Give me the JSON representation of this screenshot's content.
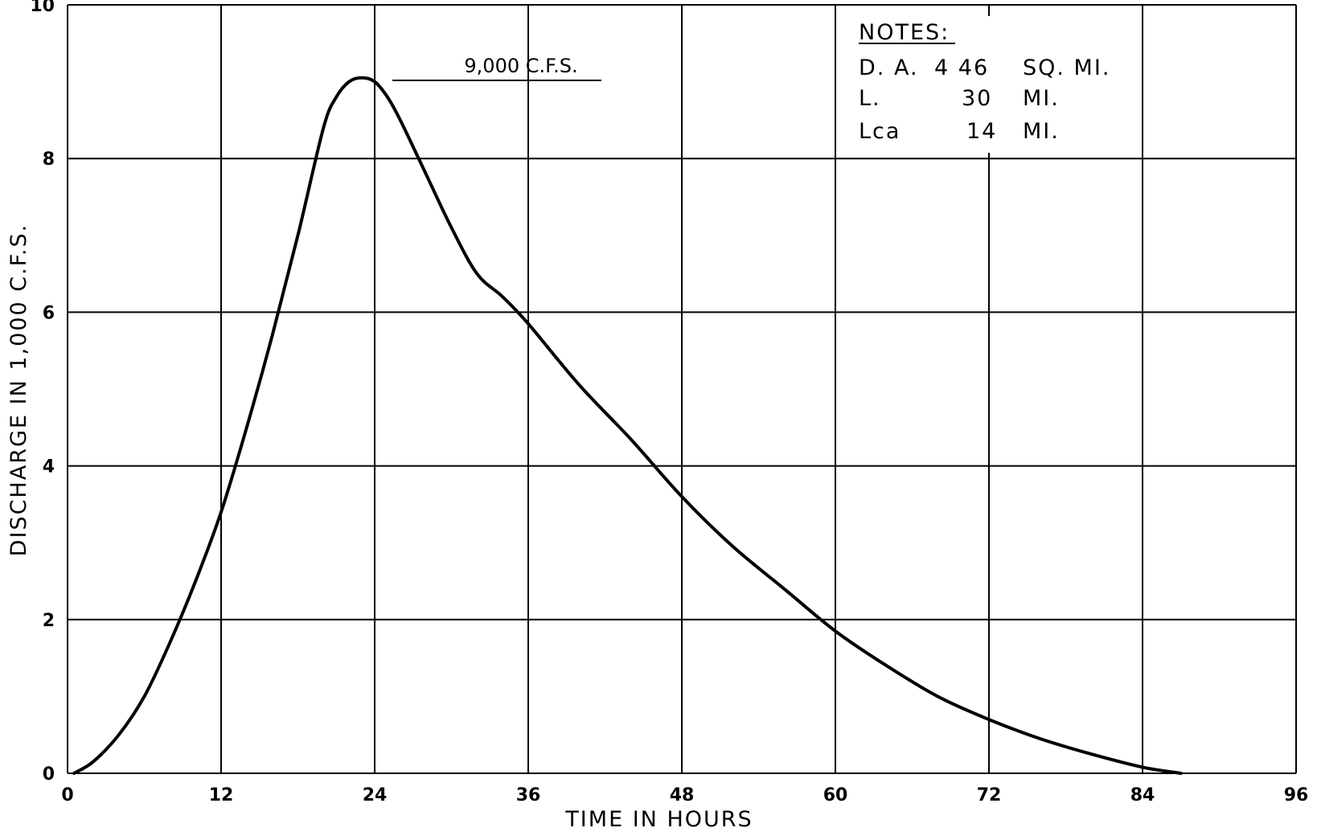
{
  "chart_data": {
    "type": "line",
    "xlabel": "TIME IN HOURS",
    "ylabel": "DISCHARGE IN 1,000 C.F.S.",
    "xlim": [
      0,
      96
    ],
    "ylim": [
      0,
      10
    ],
    "xticks": [
      "0",
      "12",
      "24",
      "36",
      "48",
      "60",
      "72",
      "84",
      "96"
    ],
    "yticks": [
      "0",
      "2",
      "4",
      "6",
      "8",
      "10"
    ],
    "grid": true,
    "series": [
      {
        "x": [
          0.5,
          2,
          4,
          6,
          8,
          10,
          12,
          14,
          16,
          18,
          20,
          21,
          22,
          23,
          24,
          25,
          26,
          28,
          30,
          32,
          34,
          36,
          40,
          44,
          48,
          52,
          56,
          60,
          64,
          68,
          72,
          76,
          80,
          84,
          87
        ],
        "y": [
          0,
          0.15,
          0.5,
          1.0,
          1.7,
          2.5,
          3.4,
          4.5,
          5.7,
          7.0,
          8.4,
          8.8,
          9.0,
          9.05,
          9.0,
          8.8,
          8.5,
          7.8,
          7.1,
          6.5,
          6.2,
          5.85,
          5.05,
          4.35,
          3.6,
          2.95,
          2.4,
          1.85,
          1.4,
          1.0,
          0.7,
          0.45,
          0.25,
          0.08,
          0
        ]
      }
    ],
    "annotations": {
      "peak_label": "9,000 C.F.S.",
      "notes_title": "NOTES:",
      "notes": [
        {
          "label": "D. A.",
          "value": "4 46",
          "unit": "SQ. MI."
        },
        {
          "label": "L.",
          "value": "30",
          "unit": "MI."
        },
        {
          "label": "Lca",
          "value": "14",
          "unit": "MI."
        }
      ]
    }
  }
}
